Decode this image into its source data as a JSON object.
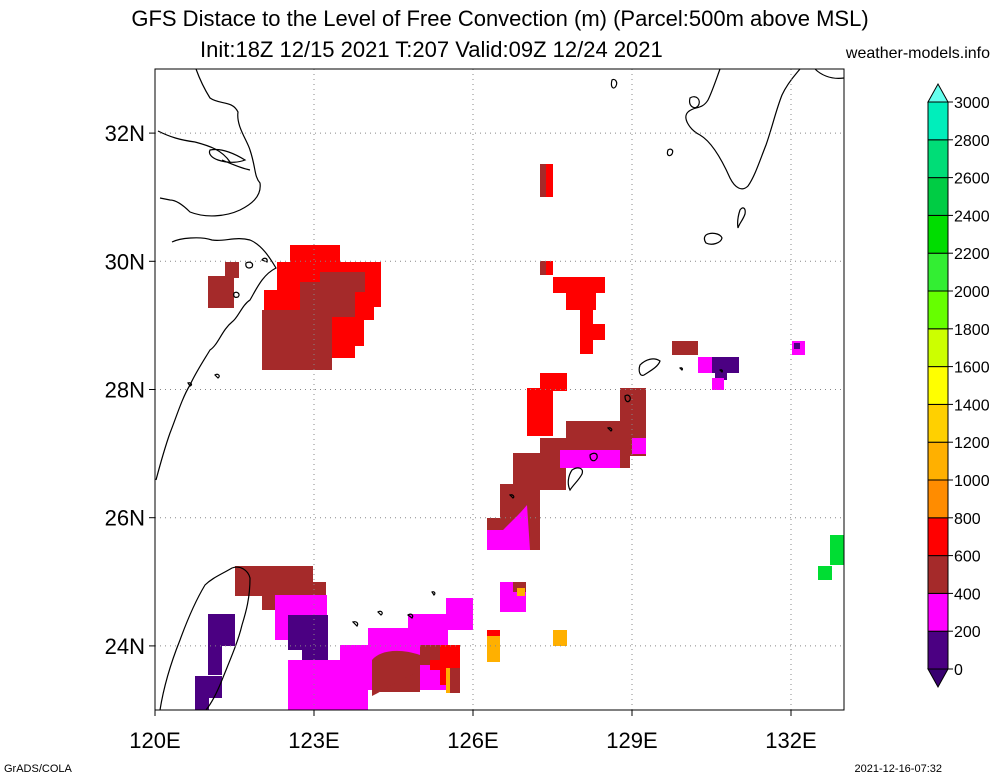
{
  "title": {
    "line1": "GFS Distace to the Level of Free Convection (m) (Parcel:500m above MSL)",
    "line2": "Init:18Z 12/15 2021 T:207 Valid:09Z 12/24 2021",
    "site": "weather-models.info"
  },
  "footer": {
    "left": "GrADS/COLA",
    "right": "2021-12-16-07:32"
  },
  "map": {
    "lon_range": [
      120,
      133
    ],
    "lat_range": [
      23,
      33
    ],
    "lon_ticks": [
      {
        "value": 120,
        "label": "120E"
      },
      {
        "value": 123,
        "label": "123E"
      },
      {
        "value": 126,
        "label": "126E"
      },
      {
        "value": 129,
        "label": "129E"
      },
      {
        "value": 132,
        "label": "132E"
      }
    ],
    "lat_ticks": [
      {
        "value": 24,
        "label": "24N"
      },
      {
        "value": 26,
        "label": "26N"
      },
      {
        "value": 28,
        "label": "28N"
      },
      {
        "value": 30,
        "label": "30N"
      },
      {
        "value": 32,
        "label": "32N"
      }
    ],
    "grid": "dotted"
  },
  "colorbar": {
    "labels": [
      "0",
      "200",
      "400",
      "600",
      "800",
      "1000",
      "1200",
      "1400",
      "1600",
      "1800",
      "2000",
      "2200",
      "2400",
      "2600",
      "2800",
      "3000"
    ],
    "colors": [
      "#4b0082",
      "#ff00ff",
      "#a52a2a",
      "#ff0000",
      "#ff8c00",
      "#ffb000",
      "#ffd000",
      "#ffff00",
      "#ccff00",
      "#66ff00",
      "#33ee33",
      "#00dd00",
      "#00cc44",
      "#00dd77",
      "#00eebb",
      "#00ffee"
    ],
    "below_color": "#380070",
    "above_color": "#66ffee"
  },
  "colors": {
    "purple": "#4b0082",
    "magenta": "#ff00ff",
    "brown": "#a52a2a",
    "red": "#ff0000",
    "orange": "#ffb000",
    "green": "#00dd33"
  }
}
